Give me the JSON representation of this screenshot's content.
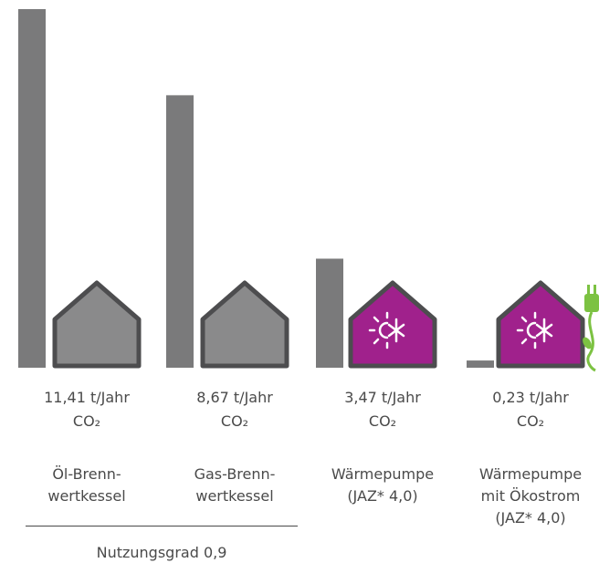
{
  "chart_data": {
    "type": "bar",
    "unit": "t/Jahr",
    "ylim": [
      0,
      11.41
    ],
    "grid": false,
    "items": [
      {
        "value": 11.41,
        "value_label": "11,41 t/Jahr",
        "unit2": "CO₂",
        "category": "Öl-Brenn-\nwertkessel",
        "heat_pump": false,
        "plug": false
      },
      {
        "value": 8.67,
        "value_label": "8,67 t/Jahr",
        "unit2": "CO₂",
        "category": "Gas-Brenn-\nwertkessel",
        "heat_pump": false,
        "plug": false
      },
      {
        "value": 3.47,
        "value_label": "3,47 t/Jahr",
        "unit2": "CO₂",
        "category": "Wärmepumpe\n(JAZ* 4,0)",
        "heat_pump": true,
        "plug": false
      },
      {
        "value": 0.23,
        "value_label": "0,23 t/Jahr",
        "unit2": "CO₂",
        "category": "Wärmepumpe\nmit Ökostrom\n(JAZ* 4,0)",
        "heat_pump": true,
        "plug": true
      }
    ],
    "footnote": "Nutzungsgrad 0,9"
  },
  "colors": {
    "bar": "#7a7a7b",
    "house_fill_plain": "#8a8a8b",
    "house_fill_heatpump": "#a0218c",
    "house_stroke": "#4d4d4f",
    "icon": "#ffffff",
    "plug": "#7cc242",
    "text": "#4a4a4a"
  },
  "icons": {
    "heat_pump": "sun-snowflake-icon",
    "eco_power": "power-plug-icon"
  }
}
